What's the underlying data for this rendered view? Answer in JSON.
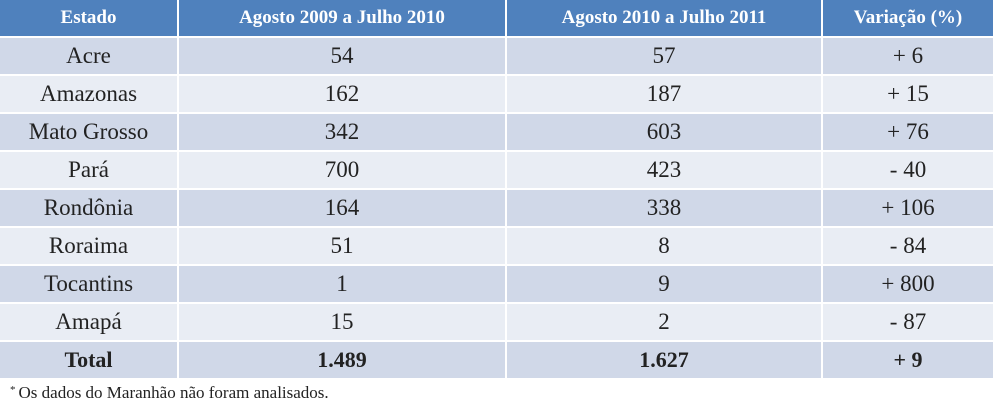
{
  "chart_data": {
    "type": "table",
    "columns": [
      "Estado",
      "Agosto 2009 a Julho 2010",
      "Agosto 2010 a Julho 2011",
      "Variação (%)"
    ],
    "rows": [
      {
        "estado": "Acre",
        "p2009": "54",
        "p2010": "57",
        "variacao": "+ 6"
      },
      {
        "estado": "Amazonas",
        "p2009": "162",
        "p2010": "187",
        "variacao": "+ 15"
      },
      {
        "estado": "Mato Grosso",
        "p2009": "342",
        "p2010": "603",
        "variacao": "+ 76"
      },
      {
        "estado": "Pará",
        "p2009": "700",
        "p2010": "423",
        "variacao": "- 40"
      },
      {
        "estado": "Rondônia",
        "p2009": "164",
        "p2010": "338",
        "variacao": "+ 106"
      },
      {
        "estado": "Roraima",
        "p2009": "51",
        "p2010": "8",
        "variacao": "- 84"
      },
      {
        "estado": "Tocantins",
        "p2009": "1",
        "p2010": "9",
        "variacao": "+ 800"
      },
      {
        "estado": "Amapá",
        "p2009": "15",
        "p2010": "2",
        "variacao": "- 87"
      }
    ],
    "total": {
      "estado": "Total",
      "p2009": "1.489",
      "p2010": "1.627",
      "variacao": "+ 9"
    }
  },
  "colors": {
    "header_bg": "#4f81bd",
    "row_odd_bg": "#d0d8e8",
    "row_even_bg": "#e9edf4"
  },
  "footnote": {
    "marker": "*",
    "text": "Os dados do Maranhão não foram analisados."
  }
}
